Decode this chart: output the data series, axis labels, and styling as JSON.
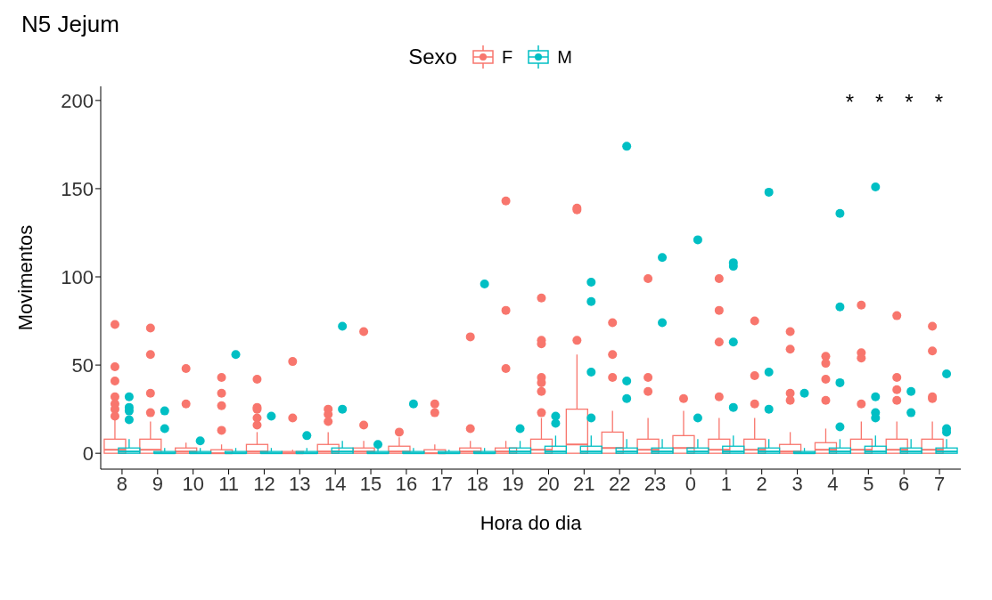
{
  "chart_data": {
    "type": "box",
    "title": "N5 Jejum",
    "xlabel": "Hora do dia",
    "ylabel": "Movimentos",
    "legend_title": "Sexo",
    "legend": "top",
    "categories": [
      "8",
      "9",
      "10",
      "11",
      "12",
      "13",
      "14",
      "15",
      "16",
      "17",
      "18",
      "19",
      "20",
      "21",
      "22",
      "23",
      "0",
      "1",
      "2",
      "3",
      "4",
      "5",
      "6",
      "7"
    ],
    "ylim": [
      -9,
      208
    ],
    "yticks": [
      0,
      50,
      100,
      150,
      200
    ],
    "grid": false,
    "series": [
      {
        "name": "F",
        "color": "#f8766d",
        "boxes": [
          {
            "low": 0,
            "q1": 0,
            "median": 2,
            "q3": 8,
            "high": 20,
            "outliers": [
              73,
              49,
              41,
              32,
              28,
              25,
              21
            ]
          },
          {
            "low": 0,
            "q1": 0,
            "median": 2,
            "q3": 8,
            "high": 18,
            "outliers": [
              71,
              56,
              34,
              23
            ]
          },
          {
            "low": 0,
            "q1": 0,
            "median": 1,
            "q3": 3,
            "high": 6,
            "outliers": [
              48,
              28
            ]
          },
          {
            "low": 0,
            "q1": 0,
            "median": 0,
            "q3": 2,
            "high": 5,
            "outliers": [
              43,
              34,
              27,
              13
            ]
          },
          {
            "low": 0,
            "q1": 0,
            "median": 1,
            "q3": 5,
            "high": 12,
            "outliers": [
              42,
              26,
              25,
              20,
              16
            ]
          },
          {
            "low": 0,
            "q1": 0,
            "median": 0,
            "q3": 1,
            "high": 2,
            "outliers": [
              52,
              20
            ]
          },
          {
            "low": 0,
            "q1": 0,
            "median": 1,
            "q3": 5,
            "high": 12,
            "outliers": [
              25,
              22,
              18
            ]
          },
          {
            "low": 0,
            "q1": 0,
            "median": 1,
            "q3": 3,
            "high": 7,
            "outliers": [
              69,
              16
            ]
          },
          {
            "low": 0,
            "q1": 0,
            "median": 1,
            "q3": 4,
            "high": 9,
            "outliers": [
              12
            ]
          },
          {
            "low": 0,
            "q1": 0,
            "median": 0,
            "q3": 2,
            "high": 5,
            "outliers": [
              28,
              23
            ]
          },
          {
            "low": 0,
            "q1": 0,
            "median": 1,
            "q3": 3,
            "high": 7,
            "outliers": [
              66,
              14
            ]
          },
          {
            "low": 0,
            "q1": 0,
            "median": 1,
            "q3": 3,
            "high": 7,
            "outliers": [
              143,
              81,
              48
            ]
          },
          {
            "low": 0,
            "q1": 0,
            "median": 2,
            "q3": 8,
            "high": 20,
            "outliers": [
              88,
              64,
              62,
              43,
              40,
              35,
              23
            ]
          },
          {
            "low": 0,
            "q1": 0,
            "median": 5,
            "q3": 25,
            "high": 56,
            "outliers": [
              139,
              138,
              64
            ]
          },
          {
            "low": 0,
            "q1": 0,
            "median": 3,
            "q3": 12,
            "high": 24,
            "outliers": [
              74,
              56,
              43
            ]
          },
          {
            "low": 0,
            "q1": 0,
            "median": 2,
            "q3": 8,
            "high": 20,
            "outliers": [
              99,
              43,
              35
            ]
          },
          {
            "low": 0,
            "q1": 0,
            "median": 3,
            "q3": 10,
            "high": 24,
            "outliers": [
              31
            ]
          },
          {
            "low": 0,
            "q1": 0,
            "median": 2,
            "q3": 8,
            "high": 20,
            "outliers": [
              99,
              81,
              63,
              32
            ]
          },
          {
            "low": 0,
            "q1": 0,
            "median": 2,
            "q3": 8,
            "high": 20,
            "outliers": [
              75,
              44,
              28
            ]
          },
          {
            "low": 0,
            "q1": 0,
            "median": 1,
            "q3": 5,
            "high": 12,
            "outliers": [
              69,
              59,
              34,
              30
            ]
          },
          {
            "low": 0,
            "q1": 0,
            "median": 2,
            "q3": 6,
            "high": 14,
            "outliers": [
              55,
              51,
              42,
              30
            ]
          },
          {
            "low": 0,
            "q1": 0,
            "median": 2,
            "q3": 8,
            "high": 18,
            "outliers": [
              84,
              57,
              54,
              28
            ]
          },
          {
            "low": 0,
            "q1": 0,
            "median": 2,
            "q3": 8,
            "high": 18,
            "outliers": [
              78,
              43,
              36,
              30
            ]
          },
          {
            "low": 0,
            "q1": 0,
            "median": 2,
            "q3": 8,
            "high": 18,
            "outliers": [
              72,
              58,
              31,
              32
            ]
          }
        ]
      },
      {
        "name": "M",
        "color": "#00bfc4",
        "boxes": [
          {
            "low": 0,
            "q1": 0,
            "median": 1,
            "q3": 3,
            "high": 8,
            "outliers": [
              32,
              26,
              24,
              19
            ]
          },
          {
            "low": 0,
            "q1": 0,
            "median": 0,
            "q3": 1,
            "high": 3,
            "outliers": [
              24,
              14
            ]
          },
          {
            "low": 0,
            "q1": 0,
            "median": 0,
            "q3": 1,
            "high": 3,
            "outliers": [
              7
            ]
          },
          {
            "low": 0,
            "q1": 0,
            "median": 0,
            "q3": 1,
            "high": 3,
            "outliers": [
              56
            ]
          },
          {
            "low": 0,
            "q1": 0,
            "median": 0,
            "q3": 1,
            "high": 3,
            "outliers": [
              21
            ]
          },
          {
            "low": 0,
            "q1": 0,
            "median": 0,
            "q3": 1,
            "high": 3,
            "outliers": [
              10
            ]
          },
          {
            "low": 0,
            "q1": 0,
            "median": 1,
            "q3": 3,
            "high": 7,
            "outliers": [
              72,
              25
            ]
          },
          {
            "low": 0,
            "q1": 0,
            "median": 0,
            "q3": 1,
            "high": 3,
            "outliers": [
              5
            ]
          },
          {
            "low": 0,
            "q1": 0,
            "median": 0,
            "q3": 1,
            "high": 3,
            "outliers": [
              28
            ]
          },
          {
            "low": 0,
            "q1": 0,
            "median": 0,
            "q3": 1,
            "high": 2
          },
          {
            "low": 0,
            "q1": 0,
            "median": 0,
            "q3": 1,
            "high": 3,
            "outliers": [
              96
            ]
          },
          {
            "low": 0,
            "q1": 0,
            "median": 1,
            "q3": 3,
            "high": 7,
            "outliers": [
              14
            ]
          },
          {
            "low": 0,
            "q1": 0,
            "median": 1,
            "q3": 4,
            "high": 10,
            "outliers": [
              21,
              17
            ]
          },
          {
            "low": 0,
            "q1": 0,
            "median": 1,
            "q3": 4,
            "high": 10,
            "outliers": [
              97,
              86,
              46,
              20
            ]
          },
          {
            "low": 0,
            "q1": 0,
            "median": 1,
            "q3": 3,
            "high": 8,
            "outliers": [
              174,
              41,
              31
            ]
          },
          {
            "low": 0,
            "q1": 0,
            "median": 1,
            "q3": 3,
            "high": 8,
            "outliers": [
              111,
              74
            ]
          },
          {
            "low": 0,
            "q1": 0,
            "median": 1,
            "q3": 3,
            "high": 8,
            "outliers": [
              121,
              20
            ]
          },
          {
            "low": 0,
            "q1": 0,
            "median": 1,
            "q3": 4,
            "high": 10,
            "outliers": [
              108,
              106,
              63,
              26
            ]
          },
          {
            "low": 0,
            "q1": 0,
            "median": 1,
            "q3": 3,
            "high": 8,
            "outliers": [
              148,
              46,
              25
            ]
          },
          {
            "low": 0,
            "q1": 0,
            "median": 0,
            "q3": 1,
            "high": 3,
            "outliers": [
              34
            ]
          },
          {
            "low": 0,
            "q1": 0,
            "median": 1,
            "q3": 3,
            "high": 8,
            "outliers": [
              136,
              83,
              40,
              15
            ]
          },
          {
            "low": 0,
            "q1": 0,
            "median": 1,
            "q3": 4,
            "high": 10,
            "outliers": [
              151,
              32,
              23,
              20
            ]
          },
          {
            "low": 0,
            "q1": 0,
            "median": 1,
            "q3": 3,
            "high": 8,
            "outliers": [
              35,
              23
            ]
          },
          {
            "low": 0,
            "q1": 0,
            "median": 1,
            "q3": 3,
            "high": 8,
            "outliers": [
              45,
              14,
              12
            ]
          }
        ]
      }
    ],
    "annotations": [
      "*",
      "*",
      "*",
      "*"
    ]
  }
}
